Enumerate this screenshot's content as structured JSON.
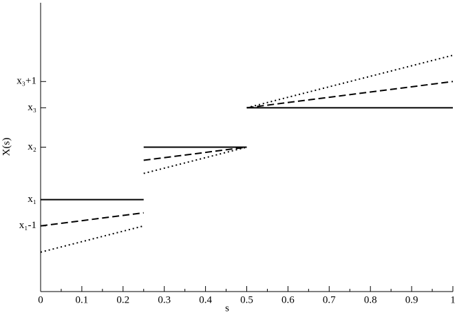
{
  "chart_data": {
    "type": "line",
    "xlabel": "s",
    "ylabel": "X(s)",
    "x": [
      0,
      0.25,
      0.25,
      0.25,
      0.5,
      0.5,
      0.5,
      1
    ],
    "series": [
      {
        "color": "#000000",
        "style": "solid",
        "values": [
          3.5,
          3.5,
          null,
          5.5,
          5.5,
          null,
          7,
          7
        ]
      },
      {
        "color": "#000000",
        "style": "dashed",
        "values": [
          2.5,
          3.0,
          null,
          5.0,
          5.5,
          null,
          7,
          8
        ]
      },
      {
        "color": "#000000",
        "style": "dotted",
        "values": [
          1.5,
          2.5,
          null,
          4.5,
          5.5,
          null,
          7,
          9
        ]
      }
    ],
    "xlim": [
      0,
      1
    ],
    "xticks": [
      0,
      0.1,
      0.2,
      0.3,
      0.4,
      0.5,
      0.6,
      0.7,
      0.8,
      0.9,
      1
    ],
    "ylim": [
      0,
      11
    ],
    "yticks": [
      {
        "value": 2.5,
        "label": "x₁-1"
      },
      {
        "value": 3.5,
        "label": "x₁"
      },
      {
        "value": 5.5,
        "label": "x₂"
      },
      {
        "value": 7,
        "label": "x₃"
      },
      {
        "value": 8,
        "label": "x₃+1"
      }
    ],
    "grid": false
  }
}
